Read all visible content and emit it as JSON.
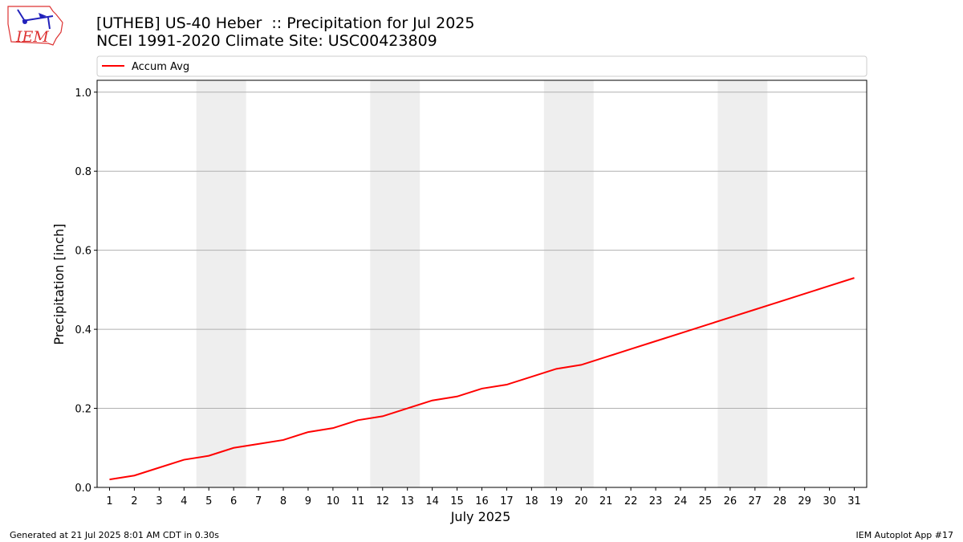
{
  "chart_data": {
    "type": "line",
    "title": "[UTHEB] US-40 Heber  :: Precipitation for Jul 2025",
    "subtitle": "NCEI 1991-2020 Climate Site: USC00423809",
    "logo_text": "IEM",
    "xlabel": "July 2025",
    "ylabel": "Precipitation [inch]",
    "footer_left": "Generated at 21 Jul 2025 8:01 AM CDT in 0.30s",
    "footer_right": "IEM Autoplot App #17",
    "x": [
      1,
      2,
      3,
      4,
      5,
      6,
      7,
      8,
      9,
      10,
      11,
      12,
      13,
      14,
      15,
      16,
      17,
      18,
      19,
      20,
      21,
      22,
      23,
      24,
      25,
      26,
      27,
      28,
      29,
      30,
      31
    ],
    "series": [
      {
        "name": "Accum Avg",
        "color": "#ff0000",
        "values": [
          0.02,
          0.03,
          0.05,
          0.07,
          0.08,
          0.1,
          0.11,
          0.12,
          0.14,
          0.15,
          0.17,
          0.18,
          0.2,
          0.22,
          0.23,
          0.25,
          0.26,
          0.28,
          0.3,
          0.31,
          0.33,
          0.35,
          0.37,
          0.39,
          0.41,
          0.43,
          0.45,
          0.47,
          0.49,
          0.51,
          0.53
        ]
      }
    ],
    "shaded_spans": [
      [
        4.5,
        6.5
      ],
      [
        11.5,
        13.5
      ],
      [
        18.5,
        20.5
      ],
      [
        25.5,
        27.5
      ]
    ],
    "shade_color": "#eeeeee",
    "xlim": [
      0.5,
      31.5
    ],
    "ylim": [
      0,
      1.03
    ],
    "xticks": [
      1,
      2,
      3,
      4,
      5,
      6,
      7,
      8,
      9,
      10,
      11,
      12,
      13,
      14,
      15,
      16,
      17,
      18,
      19,
      20,
      21,
      22,
      23,
      24,
      25,
      26,
      27,
      28,
      29,
      30,
      31
    ],
    "yticks": [
      {
        "value": 0,
        "label": "0.0"
      },
      0.2,
      0.4,
      0.6,
      0.8,
      {
        "value": 1,
        "label": "1.0"
      }
    ],
    "grid": "y",
    "legend": "top"
  }
}
